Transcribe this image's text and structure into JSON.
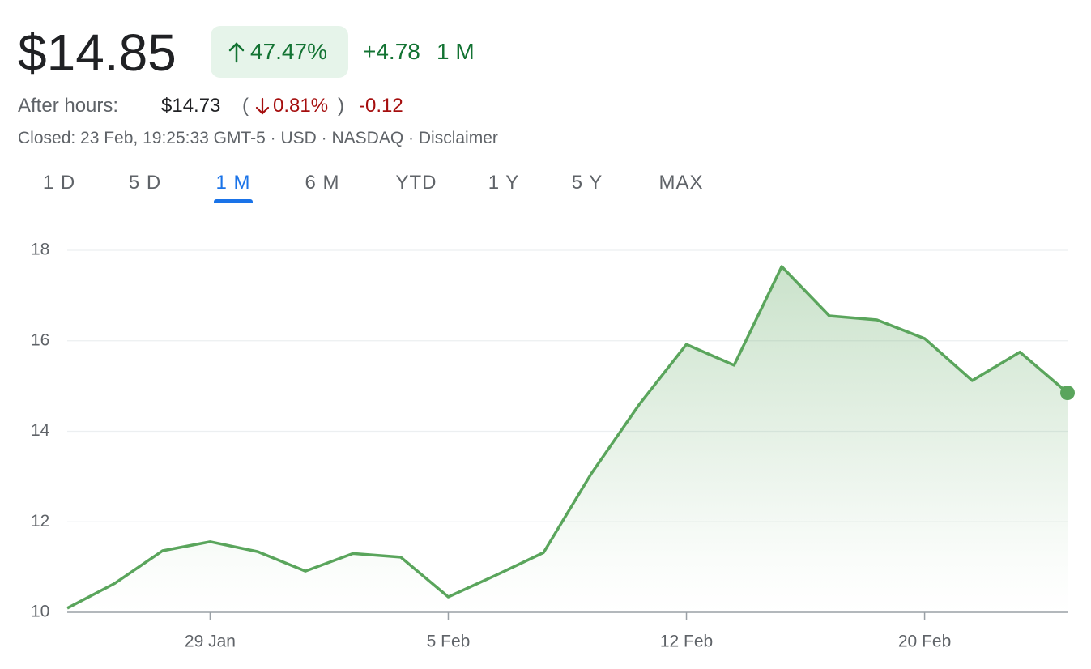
{
  "header": {
    "price": "$14.85",
    "change_percent": "47.47%",
    "change": "+4.78",
    "period": "1 M"
  },
  "after_hours": {
    "label": "After hours:",
    "price": "$14.73",
    "brackets": [
      "(",
      ")"
    ],
    "change_percent": "0.81%",
    "change": "-0.12"
  },
  "status": {
    "text": "Closed: 23 Feb, 19:25:33 GMT-5 · USD · NASDAQ",
    "separator": "·",
    "disclaimer": "Disclaimer"
  },
  "tabs": {
    "items": [
      "1 D",
      "5 D",
      "1 M",
      "6 M",
      "YTD",
      "1 Y",
      "5 Y",
      "MAX"
    ],
    "active": 2
  },
  "chart_data": {
    "type": "line",
    "categories": [
      null,
      null,
      null,
      "29 Jan",
      null,
      null,
      null,
      null,
      "5 Feb",
      null,
      null,
      null,
      null,
      "12 Feb",
      null,
      null,
      null,
      null,
      "20 Feb",
      null,
      null,
      null
    ],
    "series": [
      {
        "color": "#5aa55c",
        "values": [
          10.09,
          10.64,
          11.36,
          11.56,
          11.34,
          10.91,
          11.3,
          11.22,
          10.34,
          10.82,
          11.32,
          13.06,
          14.58,
          15.92,
          15.46,
          17.64,
          16.55,
          16.46,
          16.05,
          15.12,
          15.75,
          14.85
        ]
      }
    ],
    "ylim": [
      10,
      18
    ],
    "yticks": [
      10,
      12,
      14,
      16,
      18
    ],
    "grid": true,
    "end_marker": true
  }
}
